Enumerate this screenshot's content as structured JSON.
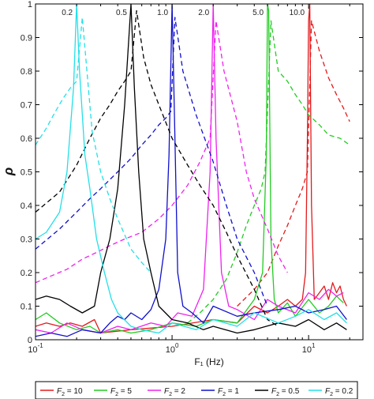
{
  "chart_data": {
    "type": "line",
    "xlabel": "F₁ (Hz)",
    "ylabel": "ρ",
    "x_scale": "log",
    "xlim": [
      0.1,
      25
    ],
    "ylim": [
      0,
      1
    ],
    "x_ticks": [
      0.1,
      1,
      10
    ],
    "x_tick_labels": [
      [
        "10",
        "-1"
      ],
      [
        "10",
        "0"
      ],
      [
        "10",
        "1"
      ]
    ],
    "y_ticks": [
      0,
      0.1,
      0.2,
      0.3,
      0.4,
      0.5,
      0.6,
      0.7,
      0.8,
      0.9,
      1
    ],
    "y_tick_labels": [
      "0",
      "0.1",
      "0.2",
      "0.3",
      "0.4",
      "0.5",
      "0.6",
      "0.7",
      "0.8",
      "0.9",
      "1"
    ],
    "peak_annotations": [
      {
        "x": 0.2,
        "label": "0.2"
      },
      {
        "x": 0.5,
        "label": "0.5"
      },
      {
        "x": 1.0,
        "label": "1.0"
      },
      {
        "x": 2.0,
        "label": "2.0"
      },
      {
        "x": 5.0,
        "label": "5.0"
      },
      {
        "x": 10.0,
        "label": "10.0"
      }
    ],
    "legend_placement": "bottom, outside plot",
    "legend": [
      {
        "sub": "2",
        "value": "10",
        "color": "#e31a1c"
      },
      {
        "sub": "2",
        "value": "5",
        "color": "#22cc22"
      },
      {
        "sub": "2",
        "value": "2",
        "color": "#ee22ee"
      },
      {
        "sub": "2",
        "value": "1",
        "color": "#1010cc"
      },
      {
        "sub": "2",
        "value": "0.5",
        "color": "#000000"
      },
      {
        "sub": "2",
        "value": "0.2",
        "color": "#22e0e8"
      }
    ],
    "series": [
      {
        "color": "#e31a1c",
        "dashed": {
          "x": [
            3,
            4,
            5,
            6,
            7,
            8,
            9,
            9.8,
            10.5,
            12,
            14,
            16,
            18,
            20
          ],
          "y": [
            0.1,
            0.15,
            0.2,
            0.28,
            0.34,
            0.4,
            0.45,
            0.5,
            0.95,
            0.86,
            0.78,
            0.73,
            0.69,
            0.65
          ]
        },
        "solid": {
          "x": [
            0.1,
            0.12,
            0.15,
            0.18,
            0.22,
            0.27,
            0.3,
            0.5,
            1,
            2,
            3,
            4,
            5,
            6,
            7,
            8,
            9,
            9.5,
            9.8,
            10,
            10.2,
            10.5,
            11,
            12,
            13,
            14,
            15,
            16,
            17,
            18,
            19
          ],
          "y": [
            0.04,
            0.05,
            0.04,
            0.05,
            0.04,
            0.06,
            0.02,
            0.03,
            0.04,
            0.06,
            0.05,
            0.1,
            0.08,
            0.1,
            0.12,
            0.1,
            0.12,
            0.2,
            0.6,
            0.95,
            1.0,
            0.4,
            0.12,
            0.14,
            0.16,
            0.12,
            0.17,
            0.14,
            0.16,
            0.12,
            0.1
          ]
        }
      },
      {
        "color": "#22cc22",
        "dashed": {
          "x": [
            1.3,
            1.6,
            2,
            2.5,
            3,
            3.5,
            4,
            4.5,
            4.8,
            5.3,
            6,
            7,
            8,
            9,
            10,
            12,
            14,
            17,
            20
          ],
          "y": [
            0.05,
            0.08,
            0.12,
            0.18,
            0.26,
            0.34,
            0.4,
            0.45,
            0.5,
            0.95,
            0.8,
            0.77,
            0.73,
            0.7,
            0.67,
            0.64,
            0.61,
            0.6,
            0.58
          ]
        },
        "solid": {
          "x": [
            0.1,
            0.12,
            0.15,
            0.2,
            0.25,
            0.3,
            0.4,
            0.5,
            0.7,
            1,
            1.5,
            2,
            3,
            4,
            4.6,
            4.9,
            5,
            5.1,
            5.3,
            5.6,
            6,
            7,
            8,
            10,
            12,
            14,
            16,
            18
          ],
          "y": [
            0.06,
            0.08,
            0.05,
            0.03,
            0.04,
            0.02,
            0.03,
            0.02,
            0.03,
            0.05,
            0.04,
            0.06,
            0.05,
            0.12,
            0.2,
            0.55,
            1.0,
            0.98,
            0.3,
            0.12,
            0.08,
            0.11,
            0.07,
            0.12,
            0.08,
            0.1,
            0.13,
            0.11
          ]
        }
      },
      {
        "color": "#ee22ee",
        "dashed": {
          "x": [
            0.1,
            0.13,
            0.17,
            0.22,
            0.28,
            0.35,
            0.45,
            0.6,
            0.8,
            1,
            1.3,
            1.6,
            1.9,
            2.1,
            2.4,
            3,
            3.5,
            4,
            5,
            6,
            7
          ],
          "y": [
            0.17,
            0.19,
            0.21,
            0.24,
            0.26,
            0.28,
            0.3,
            0.32,
            0.36,
            0.4,
            0.46,
            0.53,
            0.6,
            0.95,
            0.8,
            0.65,
            0.5,
            0.42,
            0.33,
            0.25,
            0.2
          ]
        },
        "solid": {
          "x": [
            0.1,
            0.13,
            0.17,
            0.22,
            0.3,
            0.4,
            0.5,
            0.7,
            0.9,
            1.1,
            1.4,
            1.7,
            1.9,
            2.0,
            2.1,
            2.3,
            2.6,
            3,
            4,
            5,
            6,
            8,
            10,
            12,
            14,
            16,
            18
          ],
          "y": [
            0.03,
            0.02,
            0.05,
            0.03,
            0.02,
            0.04,
            0.03,
            0.05,
            0.04,
            0.08,
            0.07,
            0.15,
            0.5,
            1.0,
            0.6,
            0.2,
            0.1,
            0.09,
            0.06,
            0.12,
            0.1,
            0.08,
            0.14,
            0.12,
            0.15,
            0.13,
            0.14
          ]
        }
      },
      {
        "color": "#1010cc",
        "dashed": {
          "x": [
            0.1,
            0.15,
            0.2,
            0.25,
            0.3,
            0.4,
            0.5,
            0.6,
            0.7,
            0.8,
            0.9,
            0.98,
            1.05,
            1.2,
            1.5,
            2,
            2.5,
            3,
            4,
            5
          ],
          "y": [
            0.27,
            0.33,
            0.38,
            0.42,
            0.45,
            0.5,
            0.54,
            0.58,
            0.61,
            0.64,
            0.66,
            0.68,
            0.96,
            0.8,
            0.67,
            0.53,
            0.4,
            0.3,
            0.2,
            0.1
          ]
        },
        "solid": {
          "x": [
            0.1,
            0.13,
            0.17,
            0.22,
            0.3,
            0.35,
            0.4,
            0.45,
            0.5,
            0.6,
            0.7,
            0.8,
            0.9,
            0.95,
            1.0,
            1.05,
            1.1,
            1.2,
            1.4,
            1.7,
            2,
            3,
            4,
            6,
            8,
            10,
            13,
            16,
            19
          ],
          "y": [
            0.01,
            0.02,
            0.01,
            0.03,
            0.02,
            0.05,
            0.07,
            0.06,
            0.08,
            0.06,
            0.09,
            0.15,
            0.3,
            0.55,
            1.0,
            0.6,
            0.2,
            0.1,
            0.08,
            0.05,
            0.1,
            0.07,
            0.08,
            0.09,
            0.1,
            0.08,
            0.09,
            0.1,
            0.06
          ]
        }
      },
      {
        "color": "#000000",
        "dashed": {
          "x": [
            0.1,
            0.15,
            0.2,
            0.25,
            0.3,
            0.35,
            0.4,
            0.45,
            0.5,
            0.55,
            0.62,
            0.7,
            0.8,
            1,
            1.3,
            1.6,
            2,
            2.5,
            3,
            4,
            5,
            6
          ],
          "y": [
            0.38,
            0.44,
            0.52,
            0.6,
            0.66,
            0.7,
            0.74,
            0.77,
            0.8,
            0.98,
            0.84,
            0.76,
            0.7,
            0.6,
            0.52,
            0.46,
            0.4,
            0.32,
            0.25,
            0.15,
            0.06,
            0.04
          ]
        },
        "solid": {
          "x": [
            0.1,
            0.12,
            0.15,
            0.18,
            0.22,
            0.27,
            0.3,
            0.35,
            0.4,
            0.45,
            0.5,
            0.53,
            0.57,
            0.62,
            0.7,
            0.8,
            1,
            1.3,
            1.7,
            2,
            3,
            4,
            6,
            8,
            10,
            13,
            16,
            19
          ],
          "y": [
            0.12,
            0.13,
            0.12,
            0.1,
            0.08,
            0.1,
            0.2,
            0.3,
            0.45,
            0.7,
            1.0,
            0.75,
            0.5,
            0.3,
            0.2,
            0.1,
            0.06,
            0.05,
            0.03,
            0.04,
            0.02,
            0.03,
            0.05,
            0.04,
            0.06,
            0.03,
            0.05,
            0.03
          ]
        }
      },
      {
        "color": "#22e0e8",
        "dashed": {
          "x": [
            0.1,
            0.12,
            0.14,
            0.16,
            0.18,
            0.2,
            0.22,
            0.26,
            0.3,
            0.35,
            0.4,
            0.5,
            0.6,
            0.7
          ],
          "y": [
            0.58,
            0.63,
            0.68,
            0.72,
            0.75,
            0.77,
            0.96,
            0.62,
            0.5,
            0.42,
            0.36,
            0.27,
            0.23,
            0.2
          ]
        },
        "solid": {
          "x": [
            0.1,
            0.12,
            0.15,
            0.17,
            0.19,
            0.2,
            0.21,
            0.23,
            0.25,
            0.28,
            0.32,
            0.36,
            0.4,
            0.5,
            0.6,
            0.8,
            1,
            1.5,
            2,
            3,
            4,
            6,
            8,
            10,
            13,
            16,
            19
          ],
          "y": [
            0.3,
            0.32,
            0.38,
            0.5,
            0.75,
            1.0,
            0.8,
            0.55,
            0.45,
            0.3,
            0.2,
            0.12,
            0.08,
            0.04,
            0.03,
            0.02,
            0.05,
            0.03,
            0.06,
            0.04,
            0.08,
            0.05,
            0.07,
            0.09,
            0.06,
            0.08,
            0.05
          ]
        }
      }
    ]
  }
}
